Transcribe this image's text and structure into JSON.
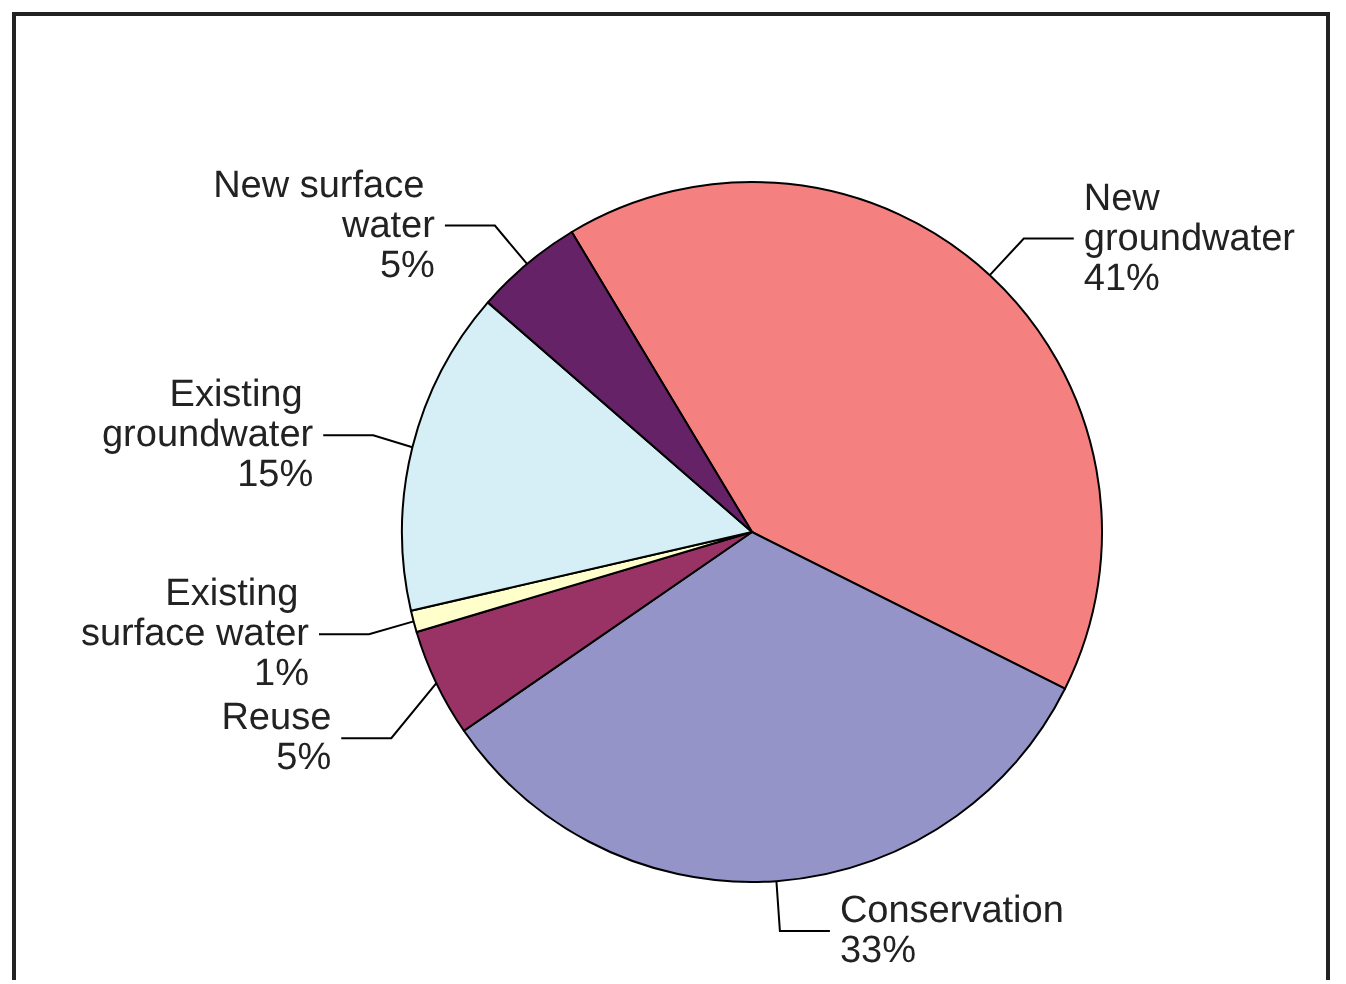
{
  "chart_data": {
    "type": "pie",
    "categories": [
      "New groundwater",
      "Conservation",
      "Reuse",
      "Existing surface water",
      "Existing groundwater",
      "New surface water"
    ],
    "values": [
      41,
      33,
      5,
      1,
      15,
      5
    ],
    "value_labels": [
      "41%",
      "33%",
      "5%",
      "1%",
      "15%",
      "5%"
    ],
    "colors": [
      "#f48080",
      "#9494c8",
      "#993366",
      "#ffffcc",
      "#d6eef5",
      "#662266"
    ],
    "legend": false
  }
}
